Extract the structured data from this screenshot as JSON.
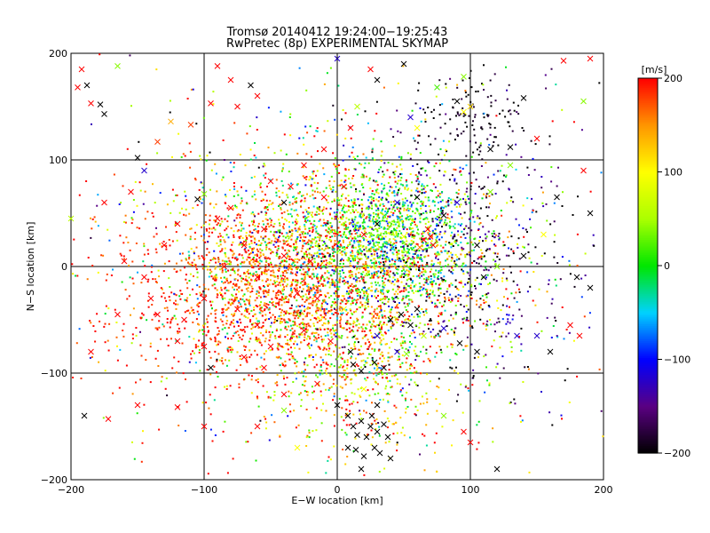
{
  "chart_data": {
    "type": "scatter",
    "title": "Tromsø 20140412 19:24:00−19:25:43",
    "subtitle": "RwPretec (8p) EXPERIMENTAL SKYMAP",
    "xlabel": "E−W location [km]",
    "ylabel": "N−S location [km]",
    "xlim": [
      -200,
      200
    ],
    "ylim": [
      -200,
      200
    ],
    "x_ticks": [
      -200,
      -100,
      0,
      100,
      200
    ],
    "y_ticks": [
      -200,
      -100,
      0,
      100,
      200
    ],
    "x_tick_labels": [
      "−200",
      "−100",
      "0",
      "100",
      "200"
    ],
    "y_tick_labels": [
      "−200",
      "−100",
      "0",
      "100",
      "200"
    ],
    "grid": true,
    "colorbar": {
      "label": "[m/s]",
      "min": -200,
      "max": 200,
      "ticks": [
        -200,
        -100,
        0,
        100,
        200
      ],
      "tick_labels": [
        "−200",
        "−100",
        "0",
        "100",
        "200"
      ],
      "placement": "right"
    },
    "marker_types": [
      "dot",
      "cross"
    ],
    "series": [
      {
        "marker": "cross",
        "points": [
          [
            -195,
            168,
            200
          ],
          [
            -192,
            185,
            200
          ],
          [
            -185,
            153,
            200
          ],
          [
            -178,
            152,
            -200
          ],
          [
            -175,
            143,
            -200
          ],
          [
            -165,
            188,
            40
          ],
          [
            -188,
            170,
            -200
          ],
          [
            -150,
            102,
            -200
          ],
          [
            -145,
            90,
            -120
          ],
          [
            -135,
            117,
            180
          ],
          [
            -125,
            136,
            140
          ],
          [
            -110,
            133,
            180
          ],
          [
            -105,
            63,
            -200
          ],
          [
            -100,
            68,
            40
          ],
          [
            -95,
            153,
            200
          ],
          [
            -80,
            175,
            200
          ],
          [
            -75,
            150,
            200
          ],
          [
            -65,
            170,
            -200
          ],
          [
            -60,
            160,
            200
          ],
          [
            -90,
            188,
            200
          ],
          [
            -40,
            60,
            -200
          ],
          [
            -35,
            75,
            200
          ],
          [
            -10,
            110,
            200
          ],
          [
            0,
            195,
            -120
          ],
          [
            10,
            130,
            200
          ],
          [
            15,
            150,
            60
          ],
          [
            25,
            185,
            200
          ],
          [
            30,
            175,
            -200
          ],
          [
            50,
            190,
            -200
          ],
          [
            55,
            140,
            -120
          ],
          [
            60,
            130,
            100
          ],
          [
            75,
            168,
            20
          ],
          [
            90,
            155,
            -200
          ],
          [
            95,
            178,
            40
          ],
          [
            95,
            145,
            100
          ],
          [
            100,
            150,
            120
          ],
          [
            115,
            110,
            -200
          ],
          [
            130,
            112,
            -200
          ],
          [
            140,
            158,
            -200
          ],
          [
            170,
            193,
            200
          ],
          [
            190,
            195,
            200
          ],
          [
            185,
            155,
            40
          ],
          [
            165,
            65,
            -200
          ],
          [
            190,
            50,
            -200
          ],
          [
            115,
            70,
            40
          ],
          [
            -200,
            45,
            60
          ],
          [
            -175,
            60,
            200
          ],
          [
            -155,
            70,
            200
          ],
          [
            -120,
            40,
            200
          ],
          [
            -90,
            45,
            200
          ],
          [
            -75,
            -40,
            200
          ],
          [
            -60,
            -55,
            200
          ],
          [
            -55,
            -95,
            200
          ],
          [
            -50,
            -75,
            200
          ],
          [
            -40,
            -120,
            200
          ],
          [
            -140,
            -30,
            200
          ],
          [
            -135,
            -45,
            200
          ],
          [
            -115,
            -50,
            200
          ],
          [
            -100,
            -75,
            200
          ],
          [
            -95,
            -95,
            -200
          ],
          [
            -185,
            -80,
            200
          ],
          [
            -172,
            -143,
            200
          ],
          [
            -150,
            -130,
            200
          ],
          [
            -120,
            -132,
            200
          ],
          [
            -145,
            -10,
            200
          ],
          [
            -190,
            -140,
            -200
          ],
          [
            -40,
            -135,
            40
          ],
          [
            -15,
            -110,
            200
          ],
          [
            10,
            -80,
            -200
          ],
          [
            12,
            -92,
            -200
          ],
          [
            18,
            -98,
            -200
          ],
          [
            28,
            -90,
            -200
          ],
          [
            35,
            -95,
            -200
          ],
          [
            40,
            -50,
            -200
          ],
          [
            48,
            -45,
            -200
          ],
          [
            55,
            -55,
            -200
          ],
          [
            60,
            -40,
            -200
          ],
          [
            30,
            -65,
            -120
          ],
          [
            45,
            -80,
            -120
          ],
          [
            52,
            -82,
            40
          ],
          [
            65,
            -65,
            60
          ],
          [
            80,
            -58,
            -120
          ],
          [
            92,
            -72,
            -200
          ],
          [
            105,
            -80,
            -200
          ],
          [
            135,
            -65,
            -120
          ],
          [
            150,
            -65,
            -120
          ],
          [
            175,
            -55,
            200
          ],
          [
            182,
            -65,
            200
          ],
          [
            160,
            -80,
            -200
          ],
          [
            20,
            -115,
            100
          ],
          [
            8,
            -140,
            -200
          ],
          [
            12,
            -150,
            -200
          ],
          [
            15,
            -158,
            -200
          ],
          [
            18,
            -145,
            -200
          ],
          [
            22,
            -160,
            -200
          ],
          [
            25,
            -150,
            -200
          ],
          [
            28,
            -170,
            -200
          ],
          [
            30,
            -155,
            -200
          ],
          [
            35,
            -148,
            -200
          ],
          [
            38,
            -160,
            -200
          ],
          [
            8,
            -170,
            -200
          ],
          [
            14,
            -172,
            -200
          ],
          [
            20,
            -178,
            -200
          ],
          [
            26,
            -140,
            -200
          ],
          [
            32,
            -175,
            -200
          ],
          [
            40,
            -180,
            -200
          ],
          [
            18,
            -190,
            -200
          ],
          [
            30,
            -130,
            -200
          ],
          [
            0,
            -130,
            -200
          ],
          [
            -25,
            -60,
            200
          ],
          [
            -5,
            -70,
            200
          ],
          [
            5,
            -40,
            100
          ],
          [
            20,
            30,
            200
          ],
          [
            30,
            40,
            -200
          ],
          [
            50,
            28,
            100
          ],
          [
            65,
            25,
            200
          ],
          [
            70,
            28,
            200
          ],
          [
            72,
            20,
            200
          ],
          [
            68,
            35,
            200
          ],
          [
            62,
            18,
            160
          ],
          [
            45,
            60,
            -120
          ],
          [
            60,
            65,
            -200
          ],
          [
            80,
            48,
            -200
          ],
          [
            90,
            60,
            -120
          ],
          [
            105,
            20,
            -200
          ],
          [
            110,
            -10,
            -200
          ],
          [
            120,
            0,
            40
          ],
          [
            140,
            10,
            -200
          ],
          [
            155,
            30,
            100
          ],
          [
            180,
            -10,
            -200
          ],
          [
            190,
            -20,
            -200
          ],
          [
            -10,
            65,
            200
          ],
          [
            5,
            75,
            200
          ],
          [
            -25,
            95,
            200
          ],
          [
            -50,
            80,
            200
          ],
          [
            -80,
            55,
            200
          ],
          [
            -70,
            20,
            200
          ],
          [
            -55,
            35,
            200
          ],
          [
            -40,
            10,
            200
          ],
          [
            -20,
            5,
            200
          ],
          [
            -30,
            -25,
            200
          ],
          [
            -60,
            -10,
            200
          ],
          [
            -85,
            0,
            200
          ],
          [
            -100,
            -30,
            200
          ],
          [
            -120,
            -70,
            200
          ],
          [
            -165,
            -45,
            200
          ],
          [
            -160,
            5,
            200
          ],
          [
            -130,
            20,
            200
          ],
          [
            -70,
            -85,
            200
          ],
          [
            -15,
            -30,
            200
          ],
          [
            100,
            -165,
            200
          ],
          [
            80,
            -140,
            40
          ],
          [
            120,
            -190,
            -200
          ],
          [
            -30,
            -170,
            100
          ],
          [
            -60,
            -150,
            200
          ],
          [
            95,
            -155,
            200
          ],
          [
            -100,
            -150,
            200
          ],
          [
            185,
            90,
            200
          ],
          [
            150,
            120,
            200
          ],
          [
            130,
            95,
            40
          ]
        ]
      },
      {
        "marker": "dot",
        "clusters": [
          {
            "cx": 0,
            "cy": 0,
            "sx": 60,
            "sy": 50,
            "n": 2200,
            "vmean": 80,
            "vsd": 110
          },
          {
            "cx": -40,
            "cy": -20,
            "sx": 45,
            "sy": 40,
            "n": 1000,
            "vmean": 175,
            "vsd": 30
          },
          {
            "cx": 40,
            "cy": 30,
            "sx": 30,
            "sy": 30,
            "n": 900,
            "vmean": 10,
            "vsd": 60
          },
          {
            "cx": 90,
            "cy": 10,
            "sx": 45,
            "sy": 60,
            "n": 500,
            "vmean": -170,
            "vsd": 45
          },
          {
            "cx": 100,
            "cy": 140,
            "sx": 20,
            "sy": 20,
            "n": 120,
            "vmean": -195,
            "vsd": 15
          },
          {
            "cx": -110,
            "cy": -30,
            "sx": 55,
            "sy": 50,
            "n": 350,
            "vmean": 190,
            "vsd": 20
          },
          {
            "cx": 20,
            "cy": -100,
            "sx": 35,
            "sy": 40,
            "n": 400,
            "vmean": 120,
            "vsd": 80
          },
          {
            "cx": 0,
            "cy": 0,
            "sx": 120,
            "sy": 110,
            "n": 600,
            "vmean": 40,
            "vsd": 150
          }
        ]
      }
    ]
  }
}
